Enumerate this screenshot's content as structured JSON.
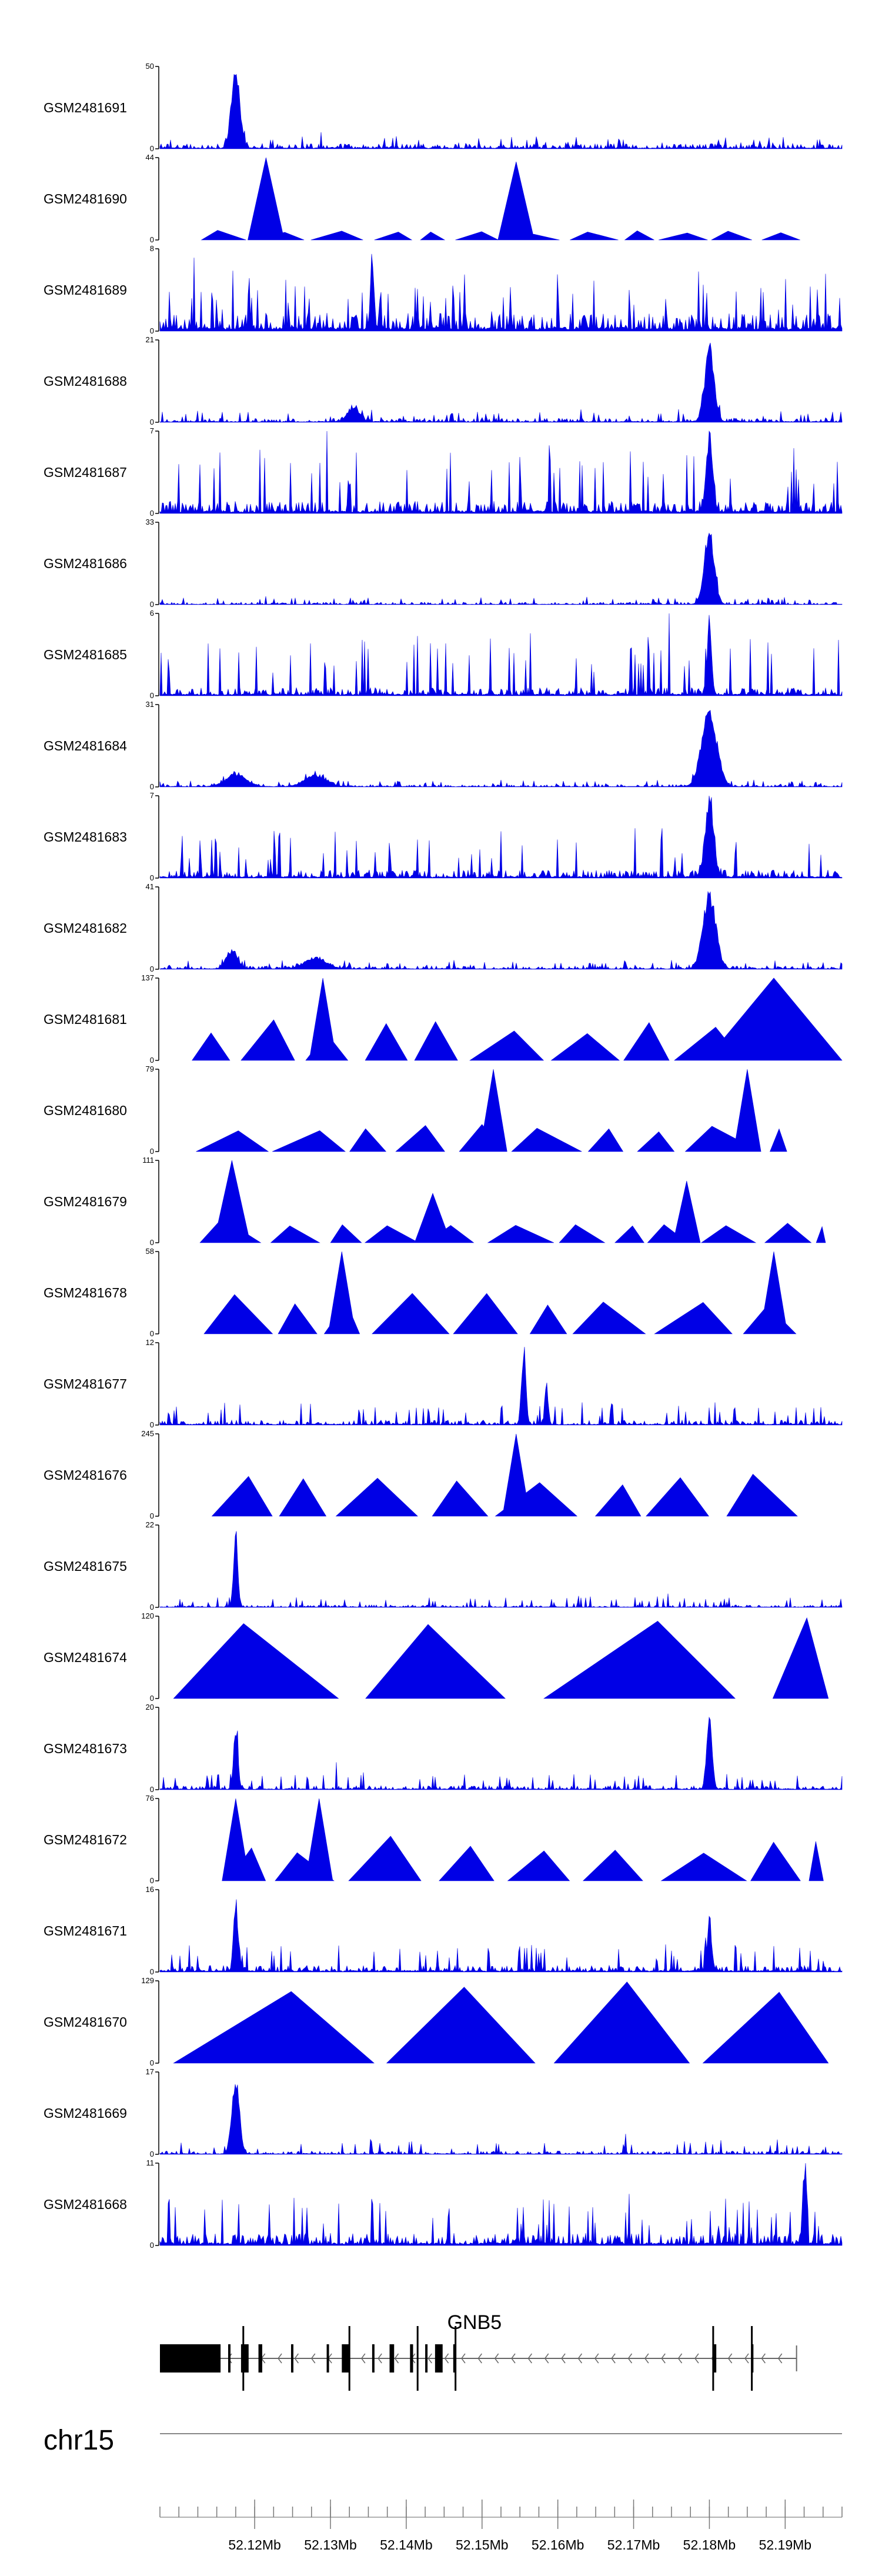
{
  "chart_data": {
    "type": "area",
    "colors": {
      "signal": "#0000e6",
      "axis": "#000000",
      "gene": "#000000",
      "chromosome_line": "#888888"
    },
    "genomic_range_mb": [
      52.1075,
      52.1975
    ],
    "tracks": [
      {
        "name": "GSM2481691",
        "ymax": 50,
        "style": "dense",
        "seed": 11,
        "base": 0.06,
        "noise": 0.12,
        "peaks": [
          [
            52.1175,
            1.0,
            0.0008
          ]
        ]
      },
      {
        "name": "GSM2481690",
        "ymax": 44,
        "style": "sparse",
        "seed": 12,
        "base": 0.12,
        "noise": 0.05,
        "peaks": [
          [
            52.1215,
            1.0,
            0.0004
          ],
          [
            52.1545,
            0.95,
            0.0004
          ]
        ]
      },
      {
        "name": "GSM2481689",
        "ymax": 8,
        "style": "dense",
        "seed": 13,
        "base": 0.22,
        "noise": 0.55,
        "peaks": [
          [
            52.1355,
            1.0,
            0.0003
          ]
        ]
      },
      {
        "name": "GSM2481688",
        "ymax": 21,
        "style": "dense",
        "seed": 14,
        "base": 0.05,
        "noise": 0.12,
        "peaks": [
          [
            52.18,
            0.95,
            0.0009
          ],
          [
            52.133,
            0.2,
            0.001
          ]
        ]
      },
      {
        "name": "GSM2481687",
        "ymax": 7,
        "style": "dense",
        "seed": 15,
        "base": 0.15,
        "noise": 0.75,
        "peaks": [
          [
            52.18,
            1.0,
            0.0006
          ]
        ]
      },
      {
        "name": "GSM2481686",
        "ymax": 33,
        "style": "dense",
        "seed": 16,
        "base": 0.03,
        "noise": 0.08,
        "peaks": [
          [
            52.18,
            0.98,
            0.0009
          ]
        ]
      },
      {
        "name": "GSM2481685",
        "ymax": 6,
        "style": "dense",
        "seed": 17,
        "base": 0.1,
        "noise": 0.7,
        "peaks": [
          [
            52.18,
            1.0,
            0.0004
          ]
        ]
      },
      {
        "name": "GSM2481684",
        "ymax": 31,
        "style": "dense",
        "seed": 18,
        "base": 0.03,
        "noise": 0.07,
        "peaks": [
          [
            52.18,
            0.98,
            0.0014
          ],
          [
            52.1175,
            0.15,
            0.002
          ],
          [
            52.128,
            0.15,
            0.002
          ]
        ]
      },
      {
        "name": "GSM2481683",
        "ymax": 7,
        "style": "dense",
        "seed": 19,
        "base": 0.1,
        "noise": 0.55,
        "peaks": [
          [
            52.18,
            1.0,
            0.0008
          ]
        ]
      },
      {
        "name": "GSM2481682",
        "ymax": 41,
        "style": "dense",
        "seed": 20,
        "base": 0.04,
        "noise": 0.08,
        "peaks": [
          [
            52.18,
            0.98,
            0.0012
          ],
          [
            52.117,
            0.25,
            0.001
          ],
          [
            52.128,
            0.15,
            0.002
          ]
        ]
      },
      {
        "name": "GSM2481681",
        "ymax": 137,
        "style": "sparse",
        "seed": 21,
        "base": 0.5,
        "noise": 0.05,
        "peaks": [
          [
            52.129,
            1.0,
            0.0003
          ],
          [
            52.1885,
            1.0,
            0.0015
          ]
        ]
      },
      {
        "name": "GSM2481680",
        "ymax": 79,
        "style": "sparse",
        "seed": 22,
        "base": 0.4,
        "noise": 0.08,
        "peaks": [
          [
            52.1515,
            1.0,
            0.0003
          ],
          [
            52.185,
            1.0,
            0.0003
          ]
        ]
      },
      {
        "name": "GSM2481679",
        "ymax": 111,
        "style": "sparse",
        "seed": 23,
        "base": 0.3,
        "noise": 0.08,
        "peaks": [
          [
            52.117,
            1.0,
            0.0004
          ],
          [
            52.1435,
            0.6,
            0.0004
          ],
          [
            52.177,
            0.75,
            0.0003
          ]
        ]
      },
      {
        "name": "GSM2481678",
        "ymax": 58,
        "style": "sparse",
        "seed": 24,
        "base": 0.5,
        "noise": 0.08,
        "peaks": [
          [
            52.1315,
            1.0,
            0.0003
          ],
          [
            52.1885,
            1.0,
            0.0003
          ]
        ]
      },
      {
        "name": "GSM2481677",
        "ymax": 12,
        "style": "dense",
        "seed": 25,
        "base": 0.06,
        "noise": 0.25,
        "peaks": [
          [
            52.1555,
            1.0,
            0.0004
          ],
          [
            52.1585,
            0.55,
            0.0003
          ]
        ]
      },
      {
        "name": "GSM2481676",
        "ymax": 245,
        "style": "sparse",
        "seed": 26,
        "base": 0.55,
        "noise": 0.05,
        "peaks": [
          [
            52.1545,
            1.0,
            0.0003
          ]
        ]
      },
      {
        "name": "GSM2481675",
        "ymax": 22,
        "style": "dense",
        "seed": 27,
        "base": 0.03,
        "noise": 0.12,
        "peaks": [
          [
            52.1175,
            1.0,
            0.0004
          ]
        ]
      },
      {
        "name": "GSM2481674",
        "ymax": 120,
        "style": "sparse",
        "seed": 28,
        "base": 1.0,
        "noise": 0.0,
        "peaks": []
      },
      {
        "name": "GSM2481673",
        "ymax": 20,
        "style": "dense",
        "seed": 29,
        "base": 0.05,
        "noise": 0.18,
        "peaks": [
          [
            52.1175,
            0.85,
            0.0004
          ],
          [
            52.18,
            0.95,
            0.0005
          ]
        ]
      },
      {
        "name": "GSM2481672",
        "ymax": 76,
        "style": "sparse",
        "seed": 30,
        "base": 0.55,
        "noise": 0.05,
        "peaks": [
          [
            52.1175,
            1.0,
            0.0003
          ],
          [
            52.1285,
            1.0,
            0.0003
          ]
        ]
      },
      {
        "name": "GSM2481671",
        "ymax": 16,
        "style": "dense",
        "seed": 31,
        "base": 0.08,
        "noise": 0.3,
        "peaks": [
          [
            52.1175,
            0.95,
            0.0004
          ],
          [
            52.18,
            0.7,
            0.0004
          ]
        ]
      },
      {
        "name": "GSM2481670",
        "ymax": 129,
        "style": "sparse",
        "seed": 32,
        "base": 1.0,
        "noise": 0.0,
        "peaks": []
      },
      {
        "name": "GSM2481669",
        "ymax": 17,
        "style": "dense",
        "seed": 33,
        "base": 0.04,
        "noise": 0.15,
        "peaks": [
          [
            52.1175,
            1.0,
            0.0007
          ]
        ]
      },
      {
        "name": "GSM2481668",
        "ymax": 11,
        "style": "dense",
        "seed": 34,
        "base": 0.15,
        "noise": 0.55,
        "peaks": [
          [
            52.1925,
            1.0,
            0.0003
          ]
        ]
      }
    ],
    "gene": {
      "name": "GNB5",
      "strand": "-",
      "start_mb": 52.1075,
      "end_mb": 52.1915,
      "exons_mb": [
        [
          52.1075,
          52.1155
        ],
        [
          52.1165,
          52.1168
        ],
        [
          52.1182,
          52.1192
        ],
        [
          52.1205,
          52.121
        ],
        [
          52.1248,
          52.1251
        ],
        [
          52.1295,
          52.1298
        ],
        [
          52.1315,
          52.1325
        ],
        [
          52.1355,
          52.1358
        ],
        [
          52.1378,
          52.1384
        ],
        [
          52.1405,
          52.1409
        ],
        [
          52.1425,
          52.1427
        ],
        [
          52.1438,
          52.1448
        ],
        [
          52.1462,
          52.1465
        ],
        [
          52.1806,
          52.1809
        ],
        [
          52.1855,
          52.1858
        ]
      ],
      "tall_marks_mb": [
        52.1185,
        52.1325,
        52.1415,
        52.1465,
        52.1805,
        52.1856
      ]
    },
    "chromosome": "chr15",
    "x_axis": {
      "tick_labels": [
        "52.12Mb",
        "52.13Mb",
        "52.14Mb",
        "52.15Mb",
        "52.16Mb",
        "52.17Mb",
        "52.18Mb",
        "52.19Mb"
      ],
      "tick_values": [
        52.12,
        52.13,
        52.14,
        52.15,
        52.16,
        52.17,
        52.18,
        52.19
      ],
      "minor_step_mb": 0.0025
    },
    "grid": false,
    "legend": "none"
  }
}
